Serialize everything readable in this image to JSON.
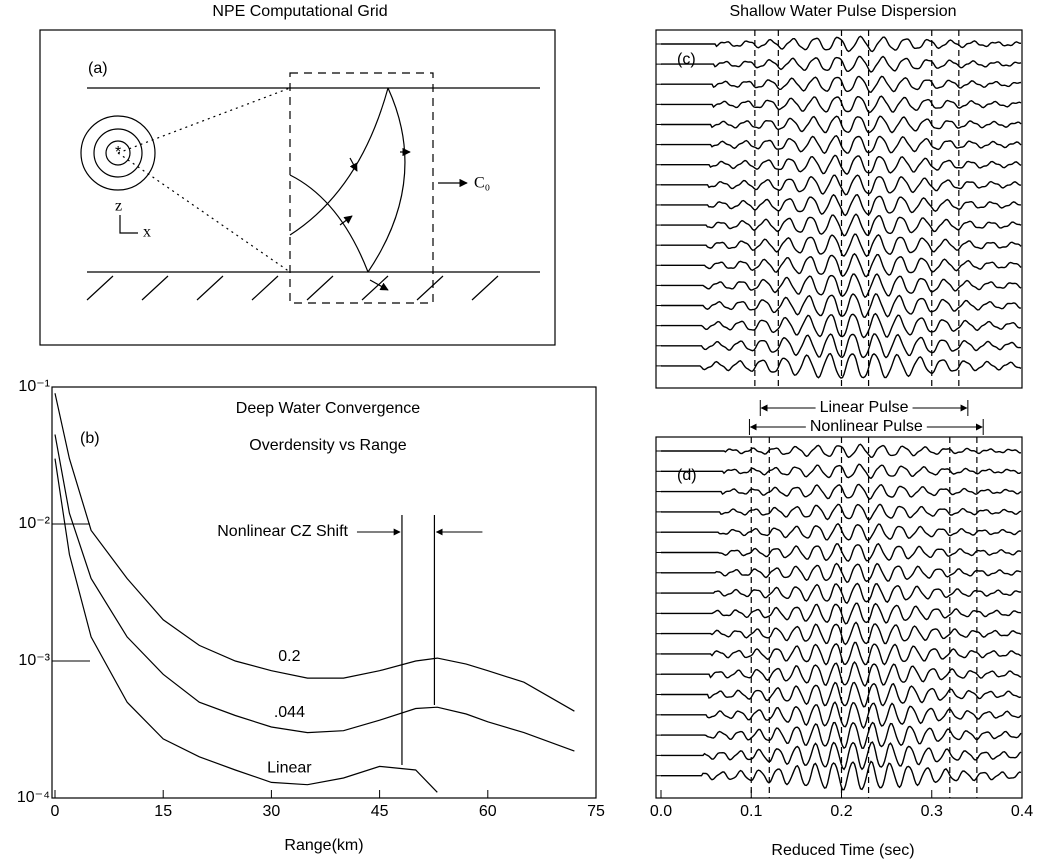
{
  "diagram": {
    "title": "NPE Computational Grid",
    "label": "(a)",
    "wave_speed_label": "C₀",
    "z_axis_label": "z",
    "x_axis_label": "x"
  },
  "chart_data": [
    {
      "type": "line",
      "label": "(b)",
      "title": "Deep Water Convergence",
      "subtitle": "Overdensity vs Range",
      "xlabel": "Range(km)",
      "log_y": true,
      "xlim": [
        0,
        75
      ],
      "ylim": [
        0.0001,
        0.1
      ],
      "xticks": [
        0,
        15,
        30,
        45,
        60,
        75
      ],
      "yticks": [
        {
          "value": 0.1,
          "label": "10⁻¹"
        },
        {
          "value": 0.01,
          "label": "10⁻²"
        },
        {
          "value": 0.001,
          "label": "10⁻³"
        },
        {
          "value": 0.0001,
          "label": "10⁻⁴"
        }
      ],
      "x": [
        0,
        2,
        5,
        10,
        15,
        20,
        25,
        30,
        35,
        40,
        45,
        50,
        53,
        57,
        60,
        65,
        72
      ],
      "series": [
        {
          "name": "0.2",
          "color": "#000000",
          "values": [
            0.09,
            0.03,
            0.009,
            0.004,
            0.002,
            0.0013,
            0.001,
            0.00085,
            0.00075,
            0.00075,
            0.00085,
            0.001,
            0.00105,
            0.00095,
            0.00085,
            0.0007,
            0.00043
          ]
        },
        {
          "name": ".044",
          "color": "#000000",
          "values": [
            0.045,
            0.012,
            0.004,
            0.0015,
            0.0008,
            0.0005,
            0.0004,
            0.00033,
            0.0003,
            0.00031,
            0.00037,
            0.00045,
            0.00046,
            0.00041,
            0.00036,
            0.0003,
            0.00022
          ]
        },
        {
          "name": "Linear",
          "color": "#000000",
          "values": [
            0.03,
            0.006,
            0.0015,
            0.0005,
            0.00027,
            0.0002,
            0.00016,
            0.00013,
            0.000125,
            0.00014,
            0.00017,
            0.00016,
            0.00011,
            null,
            null,
            null,
            null
          ]
        }
      ],
      "annotation": "Nonlinear CZ Shift",
      "cz_shift": [
        48.1,
        52.6
      ]
    },
    {
      "type": "waveform",
      "label": "(c)",
      "title": "Shallow Water Pulse Dispersion",
      "xlim": [
        0,
        0.4
      ],
      "markers": [
        0.104,
        0.13,
        0.2,
        0.23,
        0.3,
        0.33
      ],
      "pulses": [
        {
          "label": "Linear Pulse",
          "start": 0.11,
          "end": 0.34
        },
        {
          "label": "Nonlinear Pulse",
          "start": 0.098,
          "end": 0.357
        }
      ]
    },
    {
      "type": "waveform",
      "label": "(d)",
      "xlabel": "Reduced Time (sec)",
      "xlim": [
        0,
        0.4
      ],
      "xticks": [
        {
          "value": 0,
          "label": "0.0"
        },
        0.1,
        0.2,
        0.3,
        0.4
      ],
      "markers": [
        0.1,
        0.12,
        0.2,
        0.23,
        0.32,
        0.35
      ]
    }
  ]
}
